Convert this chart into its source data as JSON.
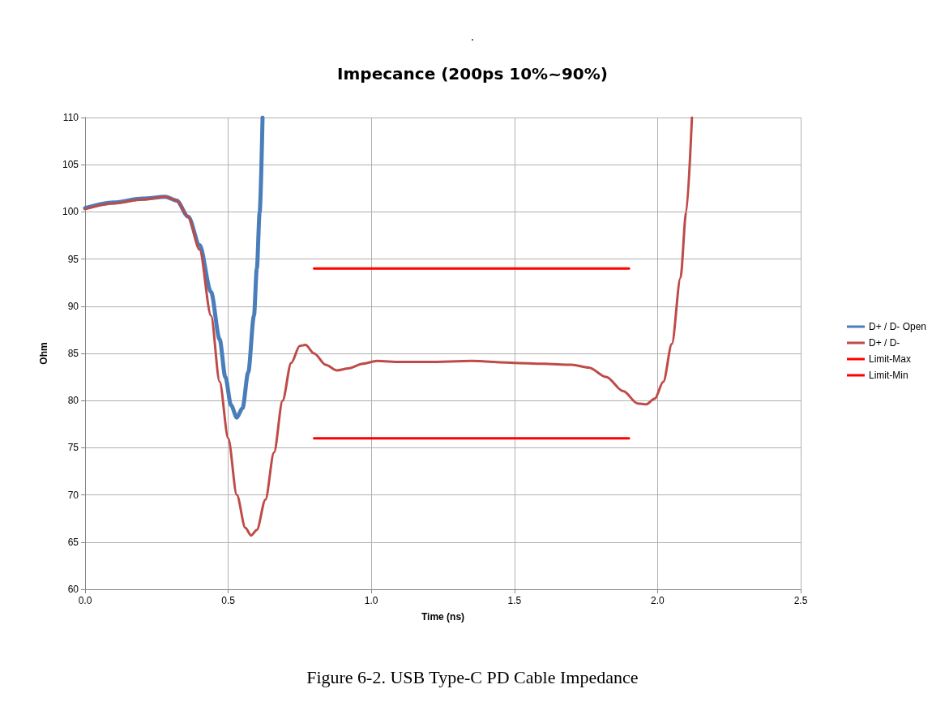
{
  "chart_data": {
    "type": "line",
    "title": "Impecance (200ps 10%~90%)",
    "xlabel": "Time (ns)",
    "ylabel": "Ohm",
    "xlim": [
      0,
      2.5
    ],
    "xticks": [
      {
        "value": 0,
        "label": "0.0"
      },
      {
        "value": 0.5,
        "label": "0.5"
      },
      {
        "value": 1,
        "label": "1.0"
      },
      {
        "value": 1.5,
        "label": "1.5"
      },
      {
        "value": 2,
        "label": "2.0"
      },
      {
        "value": 2.5,
        "label": "2.5"
      }
    ],
    "ylim": [
      60,
      110
    ],
    "yticks": [
      60,
      65,
      70,
      75,
      80,
      85,
      90,
      95,
      100,
      105,
      110
    ],
    "grid": true,
    "legend": "right",
    "marker": "none",
    "line_style": "solid",
    "annotations": [
      ".",
      "Figure 6-2. USB Type-C PD Cable Impedance"
    ],
    "series": [
      {
        "name": "D+ / D- Open",
        "color": "#4a7ebb",
        "x": [
          0,
          0.1,
          0.2,
          0.28,
          0.32,
          0.36,
          0.4,
          0.44,
          0.47,
          0.49,
          0.51,
          0.53,
          0.55,
          0.57,
          0.59,
          0.6,
          0.61,
          0.62
        ],
        "values": [
          100.4,
          101,
          101.4,
          101.6,
          101.2,
          99.5,
          96.5,
          91.5,
          86.5,
          82.5,
          79.5,
          78.2,
          79.2,
          83,
          89,
          94,
          100,
          110
        ]
      },
      {
        "name": "D+ / D-",
        "color": "#be4b48",
        "x": [
          0,
          0.1,
          0.2,
          0.28,
          0.32,
          0.36,
          0.4,
          0.44,
          0.47,
          0.5,
          0.53,
          0.56,
          0.58,
          0.6,
          0.63,
          0.66,
          0.69,
          0.72,
          0.75,
          0.77,
          0.8,
          0.84,
          0.88,
          0.92,
          0.97,
          1.02,
          1.1,
          1.2,
          1.35,
          1.5,
          1.6,
          1.7,
          1.76,
          1.82,
          1.88,
          1.93,
          1.96,
          1.99,
          2.02,
          2.05,
          2.08,
          2.1,
          2.12
        ],
        "values": [
          100.3,
          100.9,
          101.3,
          101.6,
          101.2,
          99.5,
          96,
          89,
          82,
          76,
          70,
          66.5,
          65.7,
          66.3,
          69.5,
          74.5,
          80,
          84,
          85.8,
          85.9,
          85,
          83.8,
          83.2,
          83.4,
          83.9,
          84.2,
          84.1,
          84.1,
          84.2,
          84,
          83.9,
          83.8,
          83.5,
          82.5,
          81,
          79.7,
          79.6,
          80.2,
          82,
          86,
          93,
          100,
          110
        ]
      },
      {
        "name": "Limit-Max",
        "color": "#ff0000",
        "x": [
          0.8,
          1.9
        ],
        "values": [
          94,
          94
        ]
      },
      {
        "name": "Limit-Min",
        "color": "#ff0000",
        "x": [
          0.8,
          1.9
        ],
        "values": [
          76,
          76
        ]
      }
    ]
  }
}
